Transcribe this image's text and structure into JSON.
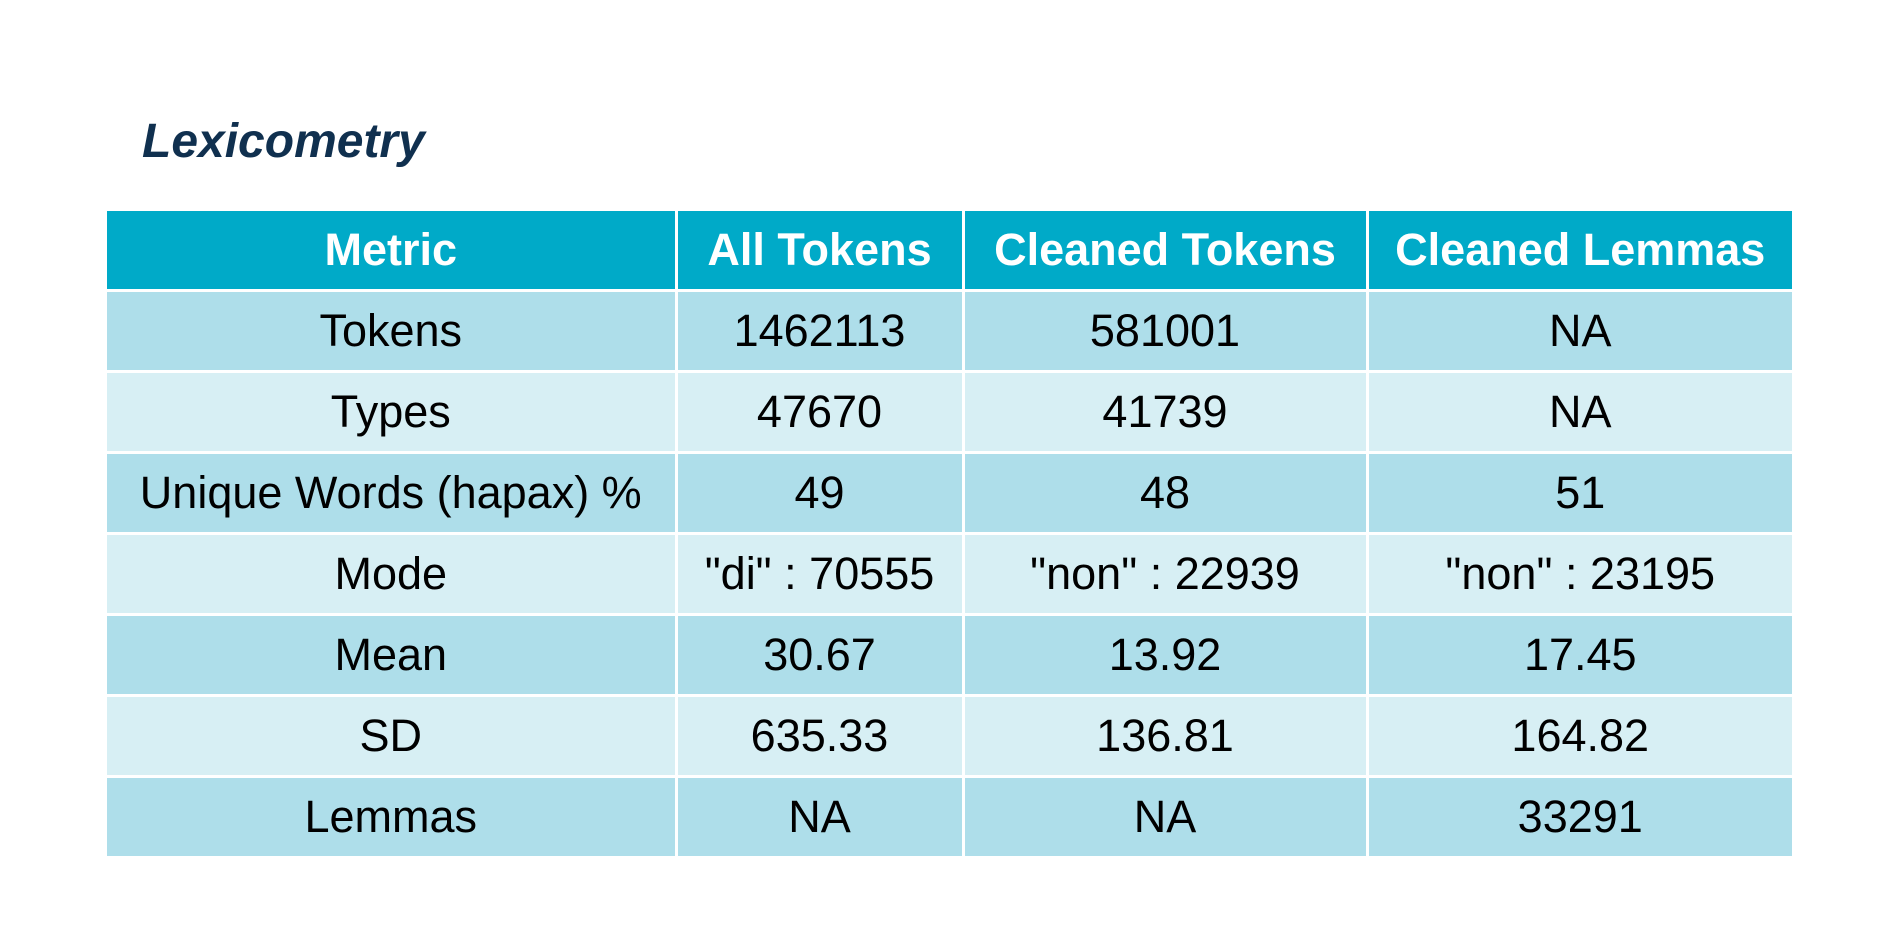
{
  "title": "Lexicometry",
  "table": {
    "headers": [
      "Metric",
      "All Tokens",
      "Cleaned Tokens",
      "Cleaned Lemmas"
    ],
    "rows": [
      [
        "Tokens",
        "1462113",
        "581001",
        "NA"
      ],
      [
        "Types",
        "47670",
        "41739",
        "NA"
      ],
      [
        "Unique Words (hapax) %",
        "49",
        "48",
        "51"
      ],
      [
        "Mode",
        "\"di\" : 70555",
        "\"non\" : 22939",
        "\"non\" : 23195"
      ],
      [
        "Mean",
        "30.67",
        "13.92",
        "17.45"
      ],
      [
        "SD",
        "635.33",
        "136.81",
        "164.82"
      ],
      [
        "Lemmas",
        "NA",
        "NA",
        "33291"
      ]
    ]
  },
  "colors": {
    "title": "#10304f",
    "header_bg": "#00aac8",
    "header_text": "#ffffff",
    "row_dark": "#aedeea",
    "row_light": "#d7eff4",
    "grid_lines": "#ffffff"
  }
}
